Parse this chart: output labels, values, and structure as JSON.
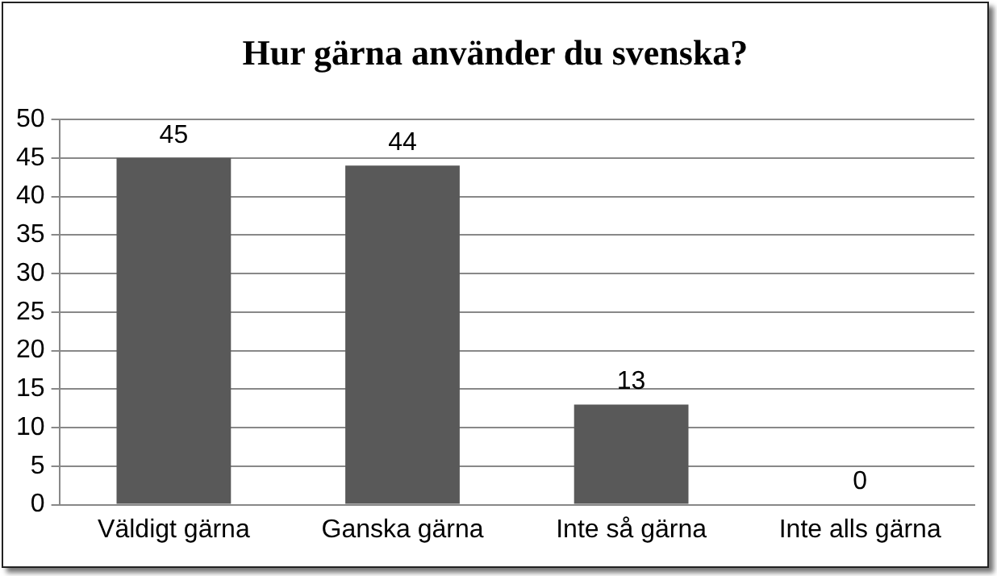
{
  "chart_data": {
    "type": "bar",
    "title": "Hur gärna använder du svenska?",
    "categories": [
      "Väldigt gärna",
      "Ganska gärna",
      "Inte så gärna",
      "Inte alls gärna"
    ],
    "values": [
      45,
      44,
      13,
      0
    ],
    "color": "#595959",
    "ylim": [
      0,
      50
    ],
    "yticks": [
      0,
      5,
      10,
      15,
      20,
      25,
      30,
      35,
      40,
      45,
      50
    ],
    "grid": "y",
    "data_labels": true,
    "legend": false
  }
}
